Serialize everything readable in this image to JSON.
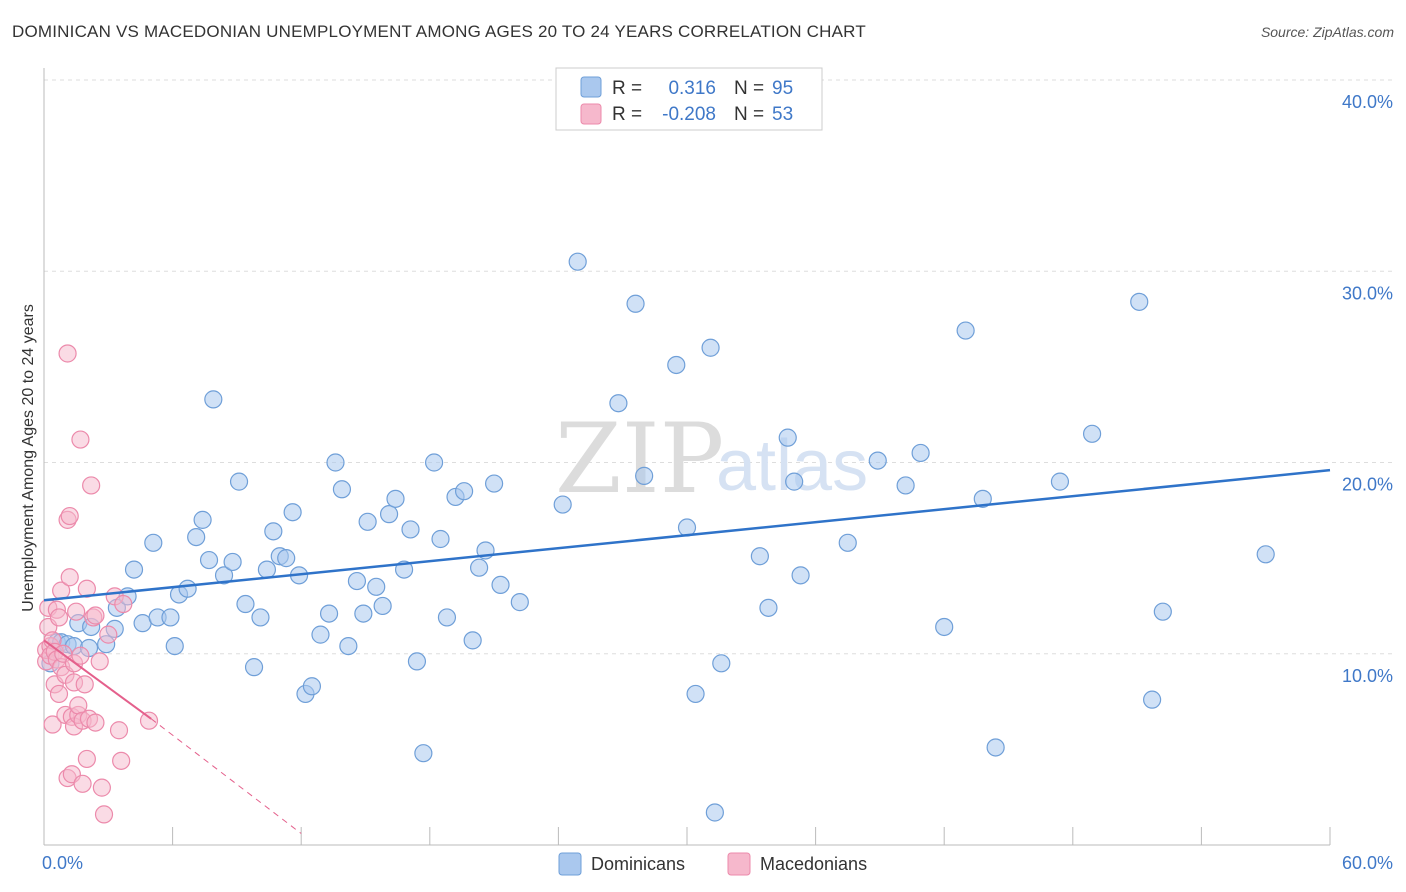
{
  "header": {
    "title": "DOMINICAN VS MACEDONIAN UNEMPLOYMENT AMONG AGES 20 TO 24 YEARS CORRELATION CHART",
    "source": "Source: ZipAtlas.com"
  },
  "watermark": {
    "zip": "ZIP",
    "atlas": "atlas"
  },
  "legend": {
    "rows": [
      {
        "r_label": "R =",
        "r_value": "0.316",
        "n_label": "N =",
        "n_value": "95"
      },
      {
        "r_label": "R =",
        "r_value": "-0.208",
        "n_label": "N =",
        "n_value": "53"
      }
    ]
  },
  "bottom_legend": [
    "Dominicans",
    "Macedonians"
  ],
  "colors": {
    "dominican_fill": "#aac8ee",
    "dominican_stroke": "#6f9fd8",
    "dominican_line": "#2f73c9",
    "macedonian_fill": "#f6b8cc",
    "macedonian_stroke": "#ec8aab",
    "macedonian_line": "#e4608c",
    "grid": "#dddddd",
    "tick_label": "#3f78c8"
  },
  "chart_data": {
    "type": "scatter",
    "title": "DOMINICAN VS MACEDONIAN UNEMPLOYMENT AMONG AGES 20 TO 24 YEARS CORRELATION CHART",
    "xlabel": "",
    "ylabel": "Unemployment Among Ages 20 to 24 years",
    "xlim": [
      0,
      60
    ],
    "ylim": [
      0,
      40
    ],
    "x_tick_labels": [
      "0.0%",
      "60.0%"
    ],
    "y_ticks": [
      10,
      20,
      30,
      40
    ],
    "y_tick_labels": [
      "10.0%",
      "20.0%",
      "30.0%",
      "40.0%"
    ],
    "grid": true,
    "series": [
      {
        "name": "Dominicans",
        "r": 0.316,
        "n": 95,
        "trend": {
          "x": [
            0,
            60
          ],
          "y": [
            12.8,
            19.6
          ]
        },
        "points": [
          [
            0.3,
            9.5
          ],
          [
            0.6,
            10.6
          ],
          [
            0.8,
            10.6
          ],
          [
            1.1,
            10.5
          ],
          [
            1.4,
            10.4
          ],
          [
            1.6,
            11.6
          ],
          [
            2.1,
            10.3
          ],
          [
            2.2,
            11.4
          ],
          [
            2.9,
            10.5
          ],
          [
            3.3,
            11.3
          ],
          [
            3.4,
            12.4
          ],
          [
            3.9,
            13.0
          ],
          [
            4.2,
            14.4
          ],
          [
            4.6,
            11.6
          ],
          [
            5.1,
            15.8
          ],
          [
            5.3,
            11.9
          ],
          [
            5.9,
            11.9
          ],
          [
            6.1,
            10.4
          ],
          [
            6.3,
            13.1
          ],
          [
            6.7,
            13.4
          ],
          [
            7.1,
            16.1
          ],
          [
            7.4,
            17.0
          ],
          [
            7.7,
            14.9
          ],
          [
            7.9,
            23.3
          ],
          [
            8.4,
            14.1
          ],
          [
            8.8,
            14.8
          ],
          [
            9.1,
            19.0
          ],
          [
            9.4,
            12.6
          ],
          [
            9.8,
            9.3
          ],
          [
            10.1,
            11.9
          ],
          [
            10.4,
            14.4
          ],
          [
            10.7,
            16.4
          ],
          [
            11.0,
            15.1
          ],
          [
            11.3,
            15.0
          ],
          [
            11.6,
            17.4
          ],
          [
            11.9,
            14.1
          ],
          [
            12.2,
            7.9
          ],
          [
            12.5,
            8.3
          ],
          [
            12.9,
            11.0
          ],
          [
            13.3,
            12.1
          ],
          [
            13.6,
            20.0
          ],
          [
            13.9,
            18.6
          ],
          [
            14.2,
            10.4
          ],
          [
            14.6,
            13.8
          ],
          [
            14.9,
            12.1
          ],
          [
            15.1,
            16.9
          ],
          [
            15.5,
            13.5
          ],
          [
            15.8,
            12.5
          ],
          [
            16.1,
            17.3
          ],
          [
            16.4,
            18.1
          ],
          [
            16.8,
            14.4
          ],
          [
            17.1,
            16.5
          ],
          [
            17.4,
            9.6
          ],
          [
            17.7,
            4.8
          ],
          [
            18.2,
            20.0
          ],
          [
            18.5,
            16.0
          ],
          [
            18.8,
            11.9
          ],
          [
            19.2,
            18.2
          ],
          [
            19.6,
            18.5
          ],
          [
            20.0,
            10.7
          ],
          [
            20.3,
            14.5
          ],
          [
            20.6,
            15.4
          ],
          [
            21.0,
            18.9
          ],
          [
            21.3,
            13.6
          ],
          [
            22.2,
            12.7
          ],
          [
            24.2,
            17.8
          ],
          [
            24.9,
            30.5
          ],
          [
            26.8,
            23.1
          ],
          [
            27.6,
            28.3
          ],
          [
            28.0,
            19.3
          ],
          [
            29.5,
            25.1
          ],
          [
            30.0,
            16.6
          ],
          [
            30.4,
            7.9
          ],
          [
            31.1,
            26.0
          ],
          [
            31.6,
            9.5
          ],
          [
            31.3,
            1.7
          ],
          [
            33.4,
            15.1
          ],
          [
            33.8,
            12.4
          ],
          [
            34.7,
            21.3
          ],
          [
            35.0,
            19.0
          ],
          [
            35.3,
            14.1
          ],
          [
            37.5,
            15.8
          ],
          [
            38.9,
            20.1
          ],
          [
            40.2,
            18.8
          ],
          [
            40.9,
            20.5
          ],
          [
            42.0,
            11.4
          ],
          [
            43.0,
            26.9
          ],
          [
            43.8,
            18.1
          ],
          [
            44.4,
            5.1
          ],
          [
            47.4,
            19.0
          ],
          [
            48.9,
            21.5
          ],
          [
            51.1,
            28.4
          ],
          [
            51.7,
            7.6
          ],
          [
            52.2,
            12.2
          ],
          [
            57.0,
            15.2
          ]
        ]
      },
      {
        "name": "Macedonians",
        "r": -0.208,
        "n": 53,
        "trend_solid": {
          "x": [
            0,
            5
          ],
          "y": [
            10.7,
            6.6
          ]
        },
        "trend_dashed": {
          "x": [
            5,
            12
          ],
          "y": [
            6.6,
            0.6
          ]
        },
        "points": [
          [
            0.1,
            9.6
          ],
          [
            0.1,
            10.2
          ],
          [
            0.2,
            11.4
          ],
          [
            0.2,
            12.4
          ],
          [
            0.3,
            10.4
          ],
          [
            0.3,
            9.9
          ],
          [
            0.4,
            6.3
          ],
          [
            0.4,
            10.7
          ],
          [
            0.5,
            8.4
          ],
          [
            0.5,
            10.1
          ],
          [
            0.6,
            12.3
          ],
          [
            0.6,
            9.7
          ],
          [
            0.7,
            11.9
          ],
          [
            0.7,
            7.9
          ],
          [
            0.8,
            9.3
          ],
          [
            0.8,
            13.3
          ],
          [
            0.9,
            10.0
          ],
          [
            1.0,
            6.8
          ],
          [
            1.0,
            8.9
          ],
          [
            1.1,
            17.0
          ],
          [
            1.1,
            25.7
          ],
          [
            1.1,
            3.5
          ],
          [
            1.2,
            14.0
          ],
          [
            1.2,
            17.2
          ],
          [
            1.3,
            3.7
          ],
          [
            1.3,
            6.7
          ],
          [
            1.4,
            9.5
          ],
          [
            1.4,
            8.5
          ],
          [
            1.4,
            6.2
          ],
          [
            1.5,
            12.2
          ],
          [
            1.6,
            6.8
          ],
          [
            1.6,
            7.3
          ],
          [
            1.7,
            9.9
          ],
          [
            1.7,
            21.2
          ],
          [
            1.8,
            6.5
          ],
          [
            1.8,
            3.2
          ],
          [
            1.9,
            8.4
          ],
          [
            2.0,
            4.5
          ],
          [
            2.0,
            13.4
          ],
          [
            2.1,
            6.6
          ],
          [
            2.2,
            18.8
          ],
          [
            2.3,
            11.9
          ],
          [
            2.4,
            12.0
          ],
          [
            2.4,
            6.4
          ],
          [
            2.6,
            9.6
          ],
          [
            2.7,
            3.0
          ],
          [
            2.8,
            1.6
          ],
          [
            3.0,
            11.0
          ],
          [
            3.3,
            13.0
          ],
          [
            3.5,
            6.0
          ],
          [
            3.6,
            4.4
          ],
          [
            3.7,
            12.6
          ],
          [
            4.9,
            6.5
          ]
        ]
      }
    ]
  }
}
